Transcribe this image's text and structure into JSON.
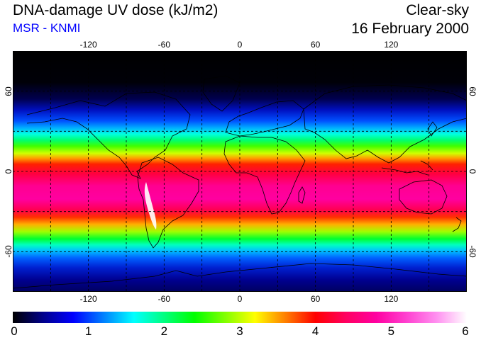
{
  "header": {
    "title": "DNA-damage UV dose (kJ/m2)",
    "subtitle": "MSR - KNMI",
    "sky_condition": "Clear-sky",
    "date": "16 February 2000",
    "subtitle_color": "#0000ff"
  },
  "map": {
    "projection": "equirectangular",
    "lon_ticks": [
      {
        "value": -120,
        "label": "-120"
      },
      {
        "value": -60,
        "label": "-60"
      },
      {
        "value": 0,
        "label": "0"
      },
      {
        "value": 60,
        "label": "60"
      },
      {
        "value": 120,
        "label": "120"
      }
    ],
    "lat_ticks": [
      {
        "value": 60,
        "label": "60"
      },
      {
        "value": 0,
        "label": "0"
      },
      {
        "value": -60,
        "label": "-60"
      }
    ],
    "gridlines": "dashed",
    "gridline_lon": [
      -150,
      -120,
      -90,
      -60,
      -30,
      0,
      30,
      60,
      90,
      120,
      150
    ],
    "gridline_lat": [
      60,
      30,
      0,
      -30,
      -60
    ]
  },
  "colorbar": {
    "range": [
      0,
      6
    ],
    "tick_labels": [
      "0",
      "1",
      "2",
      "3",
      "4",
      "5",
      "6"
    ],
    "colors": [
      "#000000",
      "#00008b",
      "#0000ff",
      "#0080ff",
      "#00ffff",
      "#00ff80",
      "#00ff00",
      "#80ff00",
      "#ffff00",
      "#ff8000",
      "#ff0000",
      "#ff0060",
      "#ff00a0",
      "#ff40d0",
      "#ff90f0",
      "#ffffff"
    ]
  },
  "colors": {
    "background": "#ffffff",
    "text": "#000000",
    "coastline": "#000000",
    "land_outline": "#000000"
  }
}
